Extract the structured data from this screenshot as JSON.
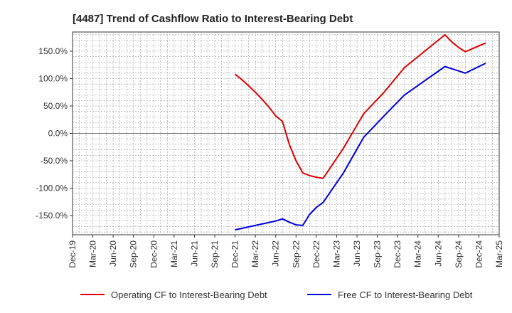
{
  "chart_data": {
    "type": "line",
    "title": "[4487]  Trend of Cashflow Ratio to Interest-Bearing Debt",
    "xlabel": "",
    "ylabel": "",
    "x_ticks": [
      "Dec-19",
      "Mar-20",
      "Jun-20",
      "Sep-20",
      "Dec-20",
      "Mar-21",
      "Jun-21",
      "Sep-21",
      "Dec-21",
      "Mar-22",
      "Jun-22",
      "Sep-22",
      "Dec-22",
      "Mar-23",
      "Jun-23",
      "Sep-23",
      "Dec-23",
      "Mar-24",
      "Jun-24",
      "Sep-24",
      "Dec-24",
      "Mar-25"
    ],
    "y_ticks": [
      "150.0%",
      "100.0%",
      "50.0%",
      "0.0%",
      "-50.0%",
      "-100.0%",
      "-150.0%"
    ],
    "y_tick_values": [
      150,
      100,
      50,
      0,
      -50,
      -100,
      -150
    ],
    "ylim": [
      -185,
      185
    ],
    "grid": true,
    "legend_position": "bottom",
    "series": [
      {
        "name": "Operating CF to Interest-Bearing Debt",
        "color": "#dd0000",
        "points": [
          [
            "Dec-21",
            108
          ],
          [
            "Jan-22",
            98
          ],
          [
            "Feb-22",
            87
          ],
          [
            "Mar-22",
            75
          ],
          [
            "Apr-22",
            62
          ],
          [
            "May-22",
            48
          ],
          [
            "Jun-22",
            32
          ],
          [
            "Jul-22",
            22
          ],
          [
            "Aug-22",
            -20
          ],
          [
            "Sep-22",
            -50
          ],
          [
            "Oct-22",
            -72
          ],
          [
            "Nov-22",
            -77
          ],
          [
            "Dec-22",
            -80
          ],
          [
            "Jan-23",
            -82
          ],
          [
            "Apr-23",
            -27
          ],
          [
            "Jul-23",
            36
          ],
          [
            "Oct-23",
            75
          ],
          [
            "Jan-24",
            120
          ],
          [
            "Apr-24",
            150
          ],
          [
            "Jul-24",
            180
          ],
          [
            "Aug-24",
            167
          ],
          [
            "Sep-24",
            157
          ],
          [
            "Oct-24",
            149
          ],
          [
            "Jan-25",
            165
          ]
        ]
      },
      {
        "name": "Free CF to Interest-Bearing Debt",
        "color": "#0000dd",
        "points": [
          [
            "Dec-21",
            -176
          ],
          [
            "Mar-22",
            -168
          ],
          [
            "Jun-22",
            -160
          ],
          [
            "Jul-22",
            -156
          ],
          [
            "Aug-22",
            -162
          ],
          [
            "Sep-22",
            -167
          ],
          [
            "Oct-22",
            -168
          ],
          [
            "Nov-22",
            -148
          ],
          [
            "Dec-22",
            -135
          ],
          [
            "Jan-23",
            -126
          ],
          [
            "Apr-23",
            -72
          ],
          [
            "Jul-23",
            -7
          ],
          [
            "Oct-23",
            32
          ],
          [
            "Jan-24",
            70
          ],
          [
            "Apr-24",
            96
          ],
          [
            "Jul-24",
            122
          ],
          [
            "Oct-24",
            110
          ],
          [
            "Jan-25",
            128
          ]
        ]
      }
    ]
  }
}
